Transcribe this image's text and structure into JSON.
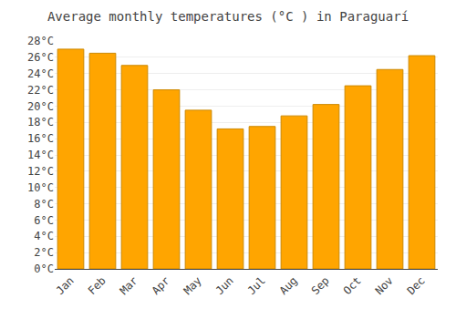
{
  "chart_data": {
    "type": "bar",
    "title": "Average monthly temperatures (°C ) in Paraguarí",
    "categories": [
      "Jan",
      "Feb",
      "Mar",
      "Apr",
      "May",
      "Jun",
      "Jul",
      "Aug",
      "Sep",
      "Oct",
      "Nov",
      "Dec"
    ],
    "values": [
      27.0,
      26.5,
      25.0,
      22.0,
      19.5,
      17.2,
      17.5,
      18.8,
      20.2,
      22.5,
      24.5,
      26.2
    ],
    "color": "#FFA500",
    "ylim": [
      0,
      28
    ],
    "yticks": [
      {
        "value": 0,
        "label": "0°C"
      },
      {
        "value": 2,
        "label": "2°C"
      },
      {
        "value": 4,
        "label": "4°C"
      },
      {
        "value": 6,
        "label": "6°C"
      },
      {
        "value": 8,
        "label": "8°C"
      },
      {
        "value": 10,
        "label": "10°C"
      },
      {
        "value": 12,
        "label": "12°C"
      },
      {
        "value": 14,
        "label": "14°C"
      },
      {
        "value": 16,
        "label": "16°C"
      },
      {
        "value": 18,
        "label": "18°C"
      },
      {
        "value": 20,
        "label": "20°C"
      },
      {
        "value": 22,
        "label": "22°C"
      },
      {
        "value": 24,
        "label": "24°C"
      },
      {
        "value": 26,
        "label": "26°C"
      },
      {
        "value": 28,
        "label": "28°C"
      }
    ],
    "grid": true
  }
}
